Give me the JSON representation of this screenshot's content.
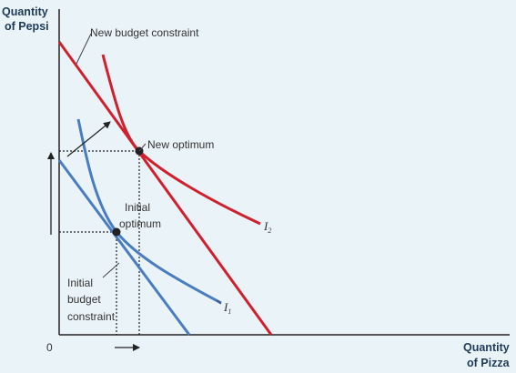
{
  "axes": {
    "y_title_line1": "Quantity",
    "y_title_line2": "of Pepsi",
    "x_title_line1": "Quantity",
    "x_title_line2": "of Pizza",
    "origin": "0"
  },
  "annotations": {
    "new_budget": "New budget constraint",
    "new_optimum": "New optimum",
    "initial_optimum_line1": "Initial",
    "initial_optimum_line2": "optimum",
    "initial_budget_line1": "Initial",
    "initial_budget_line2": "budget",
    "initial_budget_line3": "constraint"
  },
  "curves": {
    "i1_letter": "I",
    "i1_sub": "1",
    "i2_letter": "I",
    "i2_sub": "2"
  },
  "colors": {
    "new_budget_line": "#d0202e",
    "indifference_i2": "#d0202e",
    "initial_budget_line": "#4a7cc0",
    "indifference_i1": "#4a7cc0",
    "axes": "#222222",
    "background": "#e9f3f8"
  }
}
